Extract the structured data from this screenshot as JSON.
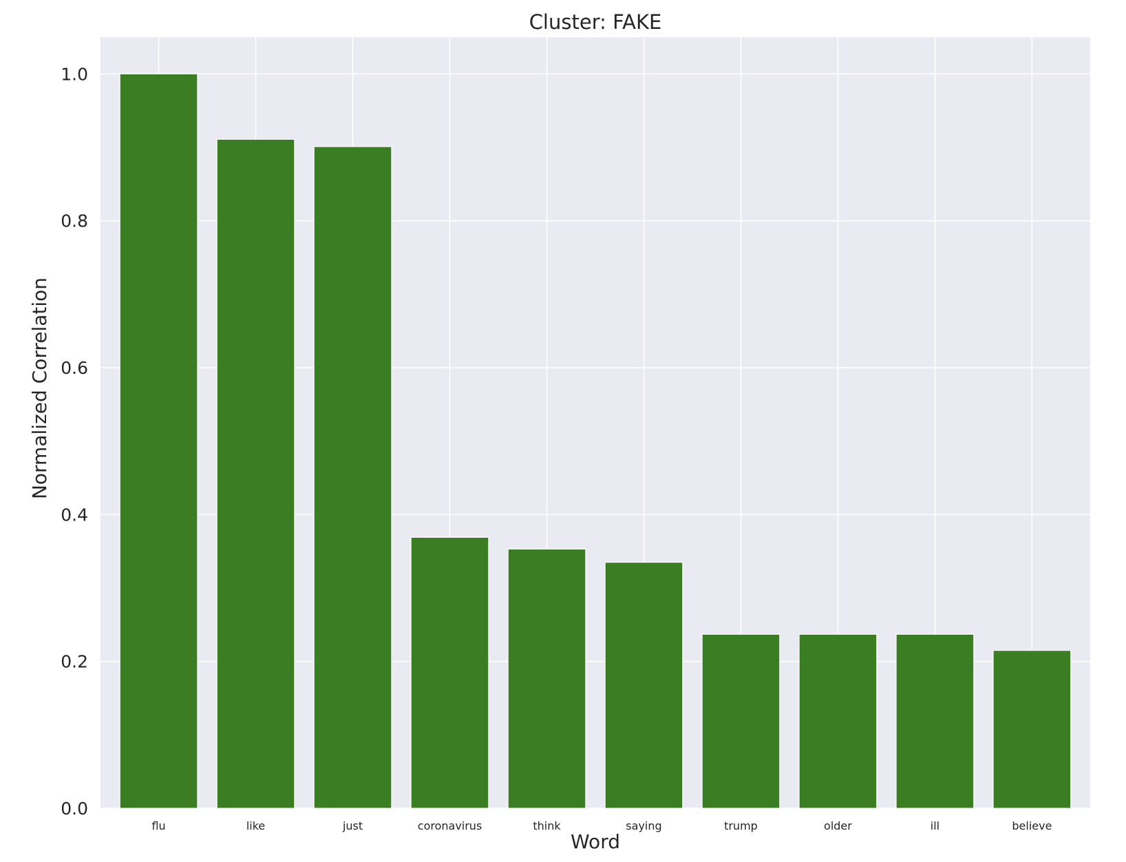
{
  "chart_data": {
    "type": "bar",
    "title": "Cluster: FAKE",
    "xlabel": "Word",
    "ylabel": "Normalized Correlation",
    "categories": [
      "flu",
      "like",
      "just",
      "coronavirus",
      "think",
      "saying",
      "trump",
      "older",
      "ill",
      "believe"
    ],
    "values": [
      1.0,
      0.911,
      0.901,
      0.369,
      0.353,
      0.335,
      0.237,
      0.237,
      0.237,
      0.215
    ],
    "ylim": [
      0,
      1.05
    ],
    "yticks": [
      "0.0",
      "0.2",
      "0.4",
      "0.6",
      "0.8",
      "1.0"
    ],
    "grid": true,
    "bar_color": "#3a7d23",
    "plot_background": "#eaeaf2",
    "grid_color": "#ffffff"
  }
}
